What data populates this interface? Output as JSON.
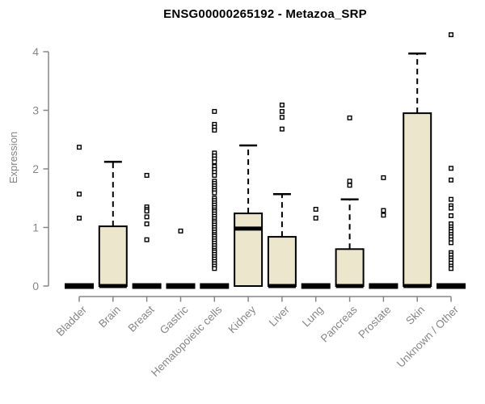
{
  "chart_data": {
    "type": "boxplot",
    "title": "ENSG00000265192 - Metazoa_SRP",
    "ylabel": "Expression",
    "xlabel": "",
    "ylim": [
      0,
      4
    ],
    "yticks": [
      0,
      1,
      2,
      3,
      4
    ],
    "grid": false,
    "legend": false,
    "categories": [
      "Bladder",
      "Brain",
      "Breast",
      "Gastric",
      "Hematopoietic cells",
      "Kidney",
      "Liver",
      "Lung",
      "Pancreas",
      "Prostate",
      "Skin",
      "Unknown / Other"
    ],
    "series": [
      {
        "category": "Bladder",
        "q1": 0,
        "median": 0,
        "q3": 0,
        "whisker_low": 0,
        "whisker_high": 0,
        "outliers": [
          2.37,
          1.57,
          1.16
        ]
      },
      {
        "category": "Brain",
        "q1": 0,
        "median": 0,
        "q3": 1.02,
        "whisker_low": 0,
        "whisker_high": 2.12,
        "outliers": []
      },
      {
        "category": "Breast",
        "q1": 0,
        "median": 0,
        "q3": 0,
        "whisker_low": 0,
        "whisker_high": 0,
        "outliers": [
          1.89,
          1.35,
          1.31,
          1.28,
          1.18,
          1.06,
          0.79
        ]
      },
      {
        "category": "Gastric",
        "q1": 0,
        "median": 0,
        "q3": 0,
        "whisker_low": 0,
        "whisker_high": 0,
        "outliers": [
          0.94
        ]
      },
      {
        "category": "Hematopoietic cells",
        "q1": 0,
        "median": 0,
        "q3": 0,
        "whisker_low": 0,
        "whisker_high": 0,
        "outliers": [
          2.98,
          2.76,
          2.71,
          2.66,
          2.27,
          2.22,
          2.17,
          2.12,
          2.04,
          1.99,
          1.94,
          1.89,
          1.79,
          1.75,
          1.71,
          1.67,
          1.63,
          1.59,
          1.5,
          1.46,
          1.42,
          1.38,
          1.34,
          1.3,
          1.27,
          1.23,
          1.19,
          1.15,
          1.11,
          1.08,
          1.04,
          1.0,
          0.96,
          0.92,
          0.88,
          0.85,
          0.81,
          0.77,
          0.73,
          0.69,
          0.65,
          0.61,
          0.58,
          0.54,
          0.5,
          0.46,
          0.42,
          0.38,
          0.34,
          0.3
        ]
      },
      {
        "category": "Kidney",
        "q1": 0,
        "median": 0.98,
        "q3": 1.24,
        "whisker_low": 0,
        "whisker_high": 2.4,
        "outliers": []
      },
      {
        "category": "Liver",
        "q1": 0,
        "median": 0,
        "q3": 0.84,
        "whisker_low": 0,
        "whisker_high": 1.57,
        "outliers": [
          3.09,
          2.98,
          2.88,
          2.68
        ]
      },
      {
        "category": "Lung",
        "q1": 0,
        "median": 0,
        "q3": 0,
        "whisker_low": 0,
        "whisker_high": 0,
        "outliers": [
          1.31,
          1.16
        ]
      },
      {
        "category": "Pancreas",
        "q1": 0,
        "median": 0,
        "q3": 0.63,
        "whisker_low": 0,
        "whisker_high": 1.48,
        "outliers": [
          2.87,
          1.79,
          1.72
        ]
      },
      {
        "category": "Prostate",
        "q1": 0,
        "median": 0,
        "q3": 0,
        "whisker_low": 0,
        "whisker_high": 0,
        "outliers": [
          1.85,
          1.29,
          1.21
        ]
      },
      {
        "category": "Skin",
        "q1": 0,
        "median": 0,
        "q3": 2.95,
        "whisker_low": 0,
        "whisker_high": 3.97,
        "outliers": []
      },
      {
        "category": "Unknown / Other",
        "q1": 0,
        "median": 0,
        "q3": 0,
        "whisker_low": 0,
        "whisker_high": 0,
        "outliers": [
          4.29,
          2.01,
          1.81,
          1.48,
          1.37,
          1.33,
          1.2,
          1.06,
          1.01,
          0.97,
          0.93,
          0.88,
          0.84,
          0.79,
          0.74,
          0.57,
          0.53,
          0.48,
          0.44,
          0.39,
          0.34,
          0.3
        ]
      }
    ],
    "colors": {
      "box_fill": "#ECE6CD",
      "box_stroke": "#000000",
      "axis": "#878787",
      "title_color": "#000000",
      "background": "#FFFFFF"
    }
  }
}
